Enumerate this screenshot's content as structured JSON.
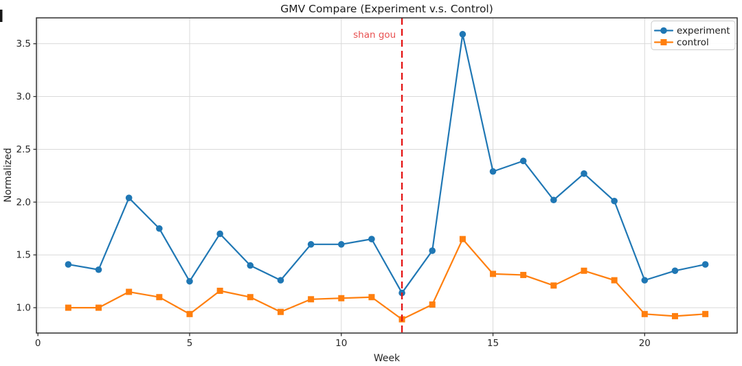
{
  "chart_data": {
    "type": "line",
    "title": "GMV Compare (Experiment v.s. Control)",
    "xlabel": "Week",
    "ylabel": "Normalized",
    "x": [
      1,
      2,
      3,
      4,
      5,
      6,
      7,
      8,
      9,
      10,
      11,
      12,
      13,
      14,
      15,
      16,
      17,
      18,
      19,
      20,
      21,
      22
    ],
    "series": [
      {
        "name": "experiment",
        "color": "#1f77b4",
        "marker": "circle",
        "values": [
          1.41,
          1.36,
          2.04,
          1.75,
          1.25,
          1.7,
          1.4,
          1.26,
          1.6,
          1.6,
          1.65,
          1.14,
          1.54,
          3.59,
          2.29,
          2.39,
          2.02,
          2.27,
          2.01,
          1.26,
          1.35,
          1.41
        ]
      },
      {
        "name": "control",
        "color": "#ff7f0e",
        "marker": "square",
        "values": [
          1.0,
          1.0,
          1.15,
          1.1,
          0.94,
          1.16,
          1.1,
          0.96,
          1.08,
          1.09,
          1.1,
          0.89,
          1.03,
          1.65,
          1.32,
          1.31,
          1.21,
          1.35,
          1.26,
          0.94,
          0.92,
          0.94
        ]
      }
    ],
    "xticks": [
      0,
      5,
      10,
      15,
      20
    ],
    "yticks": [
      1.0,
      1.5,
      2.0,
      2.5,
      3.0,
      3.5
    ],
    "xlim": [
      -0.05,
      23.05
    ],
    "ylim": [
      0.76,
      3.745
    ],
    "grid": true,
    "legend_position": "upper right",
    "annotation": {
      "text": "shan gou",
      "color": "#e85050",
      "x": 11.8,
      "y": 3.555
    },
    "event_line": {
      "x": 12,
      "color": "#e41414",
      "style": "dashed"
    }
  }
}
